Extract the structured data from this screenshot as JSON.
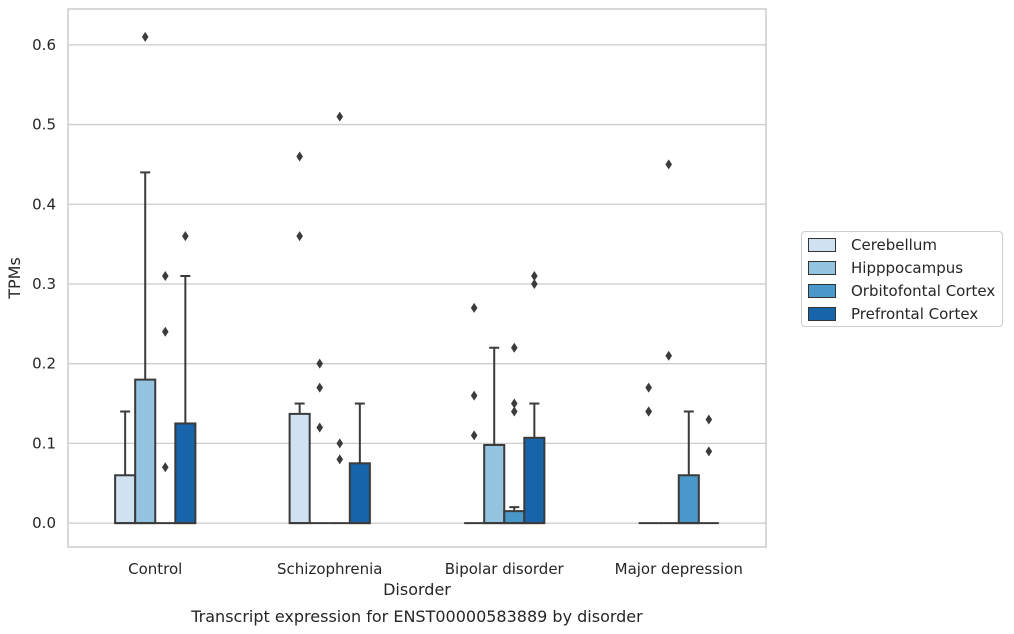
{
  "chart_data": {
    "type": "box",
    "title": "Transcript expression for ENST00000583889 by disorder",
    "xlabel": "Disorder",
    "ylabel": "TPMs",
    "ylim": [
      -0.03,
      0.645
    ],
    "yticks": [
      0.0,
      0.1,
      0.2,
      0.3,
      0.4,
      0.5,
      0.6
    ],
    "ytick_labels": [
      "0.0",
      "0.1",
      "0.2",
      "0.3",
      "0.4",
      "0.5",
      "0.6"
    ],
    "grid": "horizontal",
    "legend_position": "right, outside plot",
    "categories": [
      "Control",
      "Schizophrenia",
      "Bipolar disorder",
      "Major depression"
    ],
    "series": [
      {
        "name": "Cerebellum",
        "color": "#d0e1f2",
        "boxes": [
          {
            "q1": 0.0,
            "median": 0.0,
            "q3": 0.06,
            "whisker_low": 0.0,
            "whisker_high": 0.14,
            "outliers": []
          },
          {
            "q1": 0.0,
            "median": 0.0,
            "q3": 0.137,
            "whisker_low": 0.0,
            "whisker_high": 0.15,
            "outliers": [
              0.46,
              0.36
            ]
          },
          {
            "q1": 0.0,
            "median": 0.0,
            "q3": 0.0,
            "whisker_low": 0.0,
            "whisker_high": 0.0,
            "outliers": [
              0.27,
              0.16,
              0.11
            ]
          },
          {
            "q1": 0.0,
            "median": 0.0,
            "q3": 0.0,
            "whisker_low": 0.0,
            "whisker_high": 0.0,
            "outliers": [
              0.17,
              0.14,
              0.14
            ]
          }
        ]
      },
      {
        "name": "Hipppocampus",
        "color": "#94c4df",
        "boxes": [
          {
            "q1": 0.0,
            "median": 0.0,
            "q3": 0.18,
            "whisker_low": 0.0,
            "whisker_high": 0.44,
            "outliers": [
              0.61
            ]
          },
          {
            "q1": 0.0,
            "median": 0.0,
            "q3": 0.0,
            "whisker_low": 0.0,
            "whisker_high": 0.0,
            "outliers": [
              0.2,
              0.17,
              0.12
            ]
          },
          {
            "q1": 0.0,
            "median": 0.0,
            "q3": 0.098,
            "whisker_low": 0.0,
            "whisker_high": 0.22,
            "outliers": []
          },
          {
            "q1": 0.0,
            "median": 0.0,
            "q3": 0.0,
            "whisker_low": 0.0,
            "whisker_high": 0.0,
            "outliers": [
              0.45,
              0.21
            ]
          }
        ]
      },
      {
        "name": "Orbitofontal Cortex",
        "color": "#4a98c9",
        "boxes": [
          {
            "q1": 0.0,
            "median": 0.0,
            "q3": 0.0,
            "whisker_low": 0.0,
            "whisker_high": 0.0,
            "outliers": [
              0.31,
              0.24,
              0.07
            ]
          },
          {
            "q1": 0.0,
            "median": 0.0,
            "q3": 0.0,
            "whisker_low": 0.0,
            "whisker_high": 0.0,
            "outliers": [
              0.51,
              0.1,
              0.08
            ]
          },
          {
            "q1": 0.0,
            "median": 0.0,
            "q3": 0.015,
            "whisker_low": 0.0,
            "whisker_high": 0.02,
            "outliers": [
              0.22,
              0.15,
              0.14
            ]
          },
          {
            "q1": 0.0,
            "median": 0.0,
            "q3": 0.06,
            "whisker_low": 0.0,
            "whisker_high": 0.14,
            "outliers": []
          }
        ]
      },
      {
        "name": "Prefrontal Cortex",
        "color": "#1764ab",
        "boxes": [
          {
            "q1": 0.0,
            "median": 0.0,
            "q3": 0.125,
            "whisker_low": 0.0,
            "whisker_high": 0.31,
            "outliers": [
              0.36
            ]
          },
          {
            "q1": 0.0,
            "median": 0.0,
            "q3": 0.075,
            "whisker_low": 0.0,
            "whisker_high": 0.15,
            "outliers": []
          },
          {
            "q1": 0.0,
            "median": 0.0,
            "q3": 0.107,
            "whisker_low": 0.0,
            "whisker_high": 0.15,
            "outliers": [
              0.31,
              0.3
            ]
          },
          {
            "q1": 0.0,
            "median": 0.0,
            "q3": 0.0,
            "whisker_low": 0.0,
            "whisker_high": 0.0,
            "outliers": [
              0.13,
              0.09
            ]
          }
        ]
      }
    ]
  }
}
